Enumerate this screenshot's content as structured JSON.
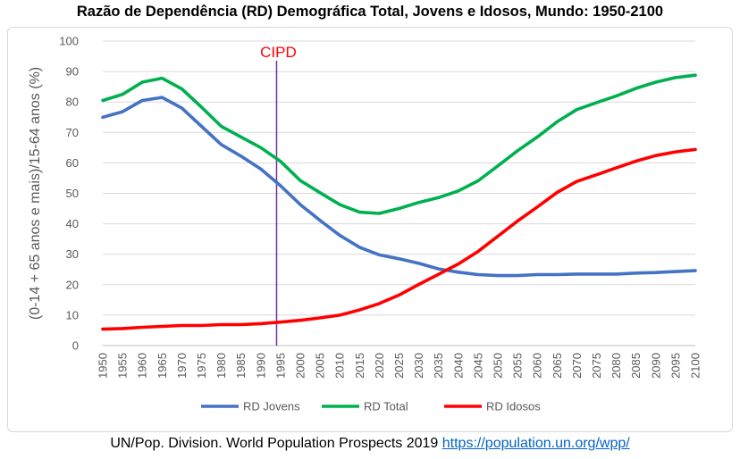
{
  "chart_data": {
    "type": "line",
    "title": "Razão de Dependência (RD) Demográfica Total, Jovens e Idosos, Mundo: 1950-2100",
    "xlabel": "",
    "ylabel": "(0-14 + 65 anos e mais)/15-64 anos (%)",
    "ylim": [
      0,
      100
    ],
    "yticks": [
      0,
      10,
      20,
      30,
      40,
      50,
      60,
      70,
      80,
      90,
      100
    ],
    "x": [
      1950,
      1955,
      1960,
      1965,
      1970,
      1975,
      1980,
      1985,
      1990,
      1995,
      2000,
      2005,
      2010,
      2015,
      2020,
      2025,
      2030,
      2035,
      2040,
      2045,
      2050,
      2055,
      2060,
      2065,
      2070,
      2075,
      2080,
      2085,
      2090,
      2095,
      2100
    ],
    "series": [
      {
        "name": "RD Jovens",
        "color": "#4472c4",
        "values": [
          75,
          76.8,
          80.5,
          81.5,
          78,
          72,
          66,
          62.2,
          58,
          52.5,
          46.3,
          41.1,
          36.2,
          32.3,
          29.8,
          28.5,
          27,
          25.2,
          24.1,
          23.3,
          23,
          23,
          23.3,
          23.3,
          23.5,
          23.5,
          23.5,
          23.8,
          24,
          24.3,
          24.6
        ]
      },
      {
        "name": "RD Total",
        "color": "#00b050",
        "values": [
          80.5,
          82.5,
          86.5,
          87.8,
          84.3,
          78.3,
          72,
          68.5,
          65,
          60.5,
          54.2,
          50.2,
          46.3,
          43.8,
          43.4,
          45,
          47,
          48.6,
          50.8,
          54.1,
          59,
          64,
          68.5,
          73.5,
          77.5,
          79.8,
          82,
          84.5,
          86.5,
          88,
          88.8
        ]
      },
      {
        "name": "RD Idosos",
        "color": "#ff0000",
        "values": [
          5.4,
          5.6,
          6,
          6.3,
          6.6,
          6.6,
          6.9,
          6.9,
          7.2,
          7.7,
          8.3,
          9.1,
          10,
          11.7,
          13.8,
          16.6,
          20.1,
          23.4,
          26.8,
          30.9,
          35.9,
          40.9,
          45.5,
          50.3,
          53.9,
          56.1,
          58.4,
          60.6,
          62.4,
          63.6,
          64.4
        ]
      }
    ],
    "annotations": [
      {
        "label": "CIPD",
        "x": 1994,
        "color": "#ff0000",
        "line_color": "#7030a0"
      }
    ],
    "grid": true,
    "legend_position": "bottom"
  },
  "source": {
    "text": "UN/Pop. Division. World Population Prospects 2019",
    "link": "https://population.un.org/wpp/"
  }
}
